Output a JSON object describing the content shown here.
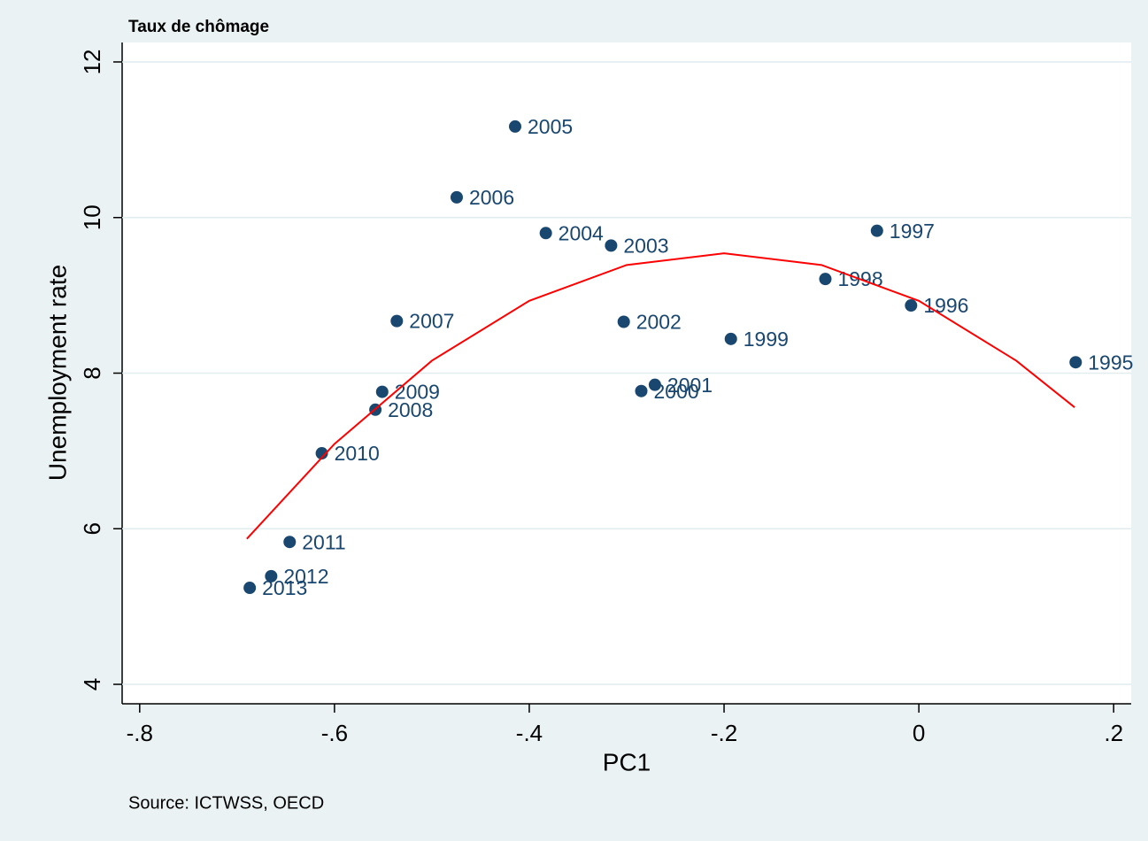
{
  "chart_data": {
    "type": "scatter",
    "title": "Taux de chômage",
    "x_label": "PC1",
    "y_label": "Unemployment rate",
    "note": "Source: ICTWSS, OECD",
    "xlim": [
      -0.818,
      0.218
    ],
    "ylim": [
      3.75,
      12.25
    ],
    "xticks": [
      {
        "value": -0.8,
        "label": "-.8"
      },
      {
        "value": -0.6,
        "label": "-.6"
      },
      {
        "value": -0.4,
        "label": "-.4"
      },
      {
        "value": -0.2,
        "label": "-.2"
      },
      0,
      {
        "value": 0.2,
        "label": ".2"
      }
    ],
    "yticks": [
      4,
      6,
      8,
      10,
      12
    ],
    "grid": true,
    "series": [
      {
        "color": "#1a476f",
        "labels": [
          "2005",
          "2006",
          "2004",
          "2003",
          "1997",
          "1998",
          "1996",
          "1995",
          "1999",
          "2002",
          "2007",
          "2001",
          "2000",
          "2009",
          "2008",
          "2010",
          "2011",
          "2012",
          "2013"
        ],
        "x": [
          -0.4145,
          -0.4745,
          -0.383,
          -0.316,
          -0.043,
          -0.096,
          -0.008,
          0.161,
          -0.193,
          -0.303,
          -0.536,
          -0.271,
          -0.285,
          -0.551,
          -0.558,
          -0.613,
          -0.646,
          -0.665,
          -0.687
        ],
        "values": [
          11.17,
          10.26,
          9.8,
          9.64,
          9.83,
          9.21,
          8.87,
          8.14,
          8.44,
          8.66,
          8.67,
          7.85,
          7.77,
          7.76,
          7.53,
          6.97,
          5.83,
          5.39,
          5.24
        ]
      },
      {
        "type": "line",
        "color": "#ff0000",
        "x": [
          -0.69,
          -0.6,
          -0.5,
          -0.4,
          -0.3,
          -0.2,
          -0.1,
          0,
          0.1,
          0.16
        ],
        "values": [
          5.87,
          7.09,
          8.16,
          8.93,
          9.39,
          9.54,
          9.39,
          8.93,
          8.16,
          7.56
        ]
      }
    ]
  }
}
